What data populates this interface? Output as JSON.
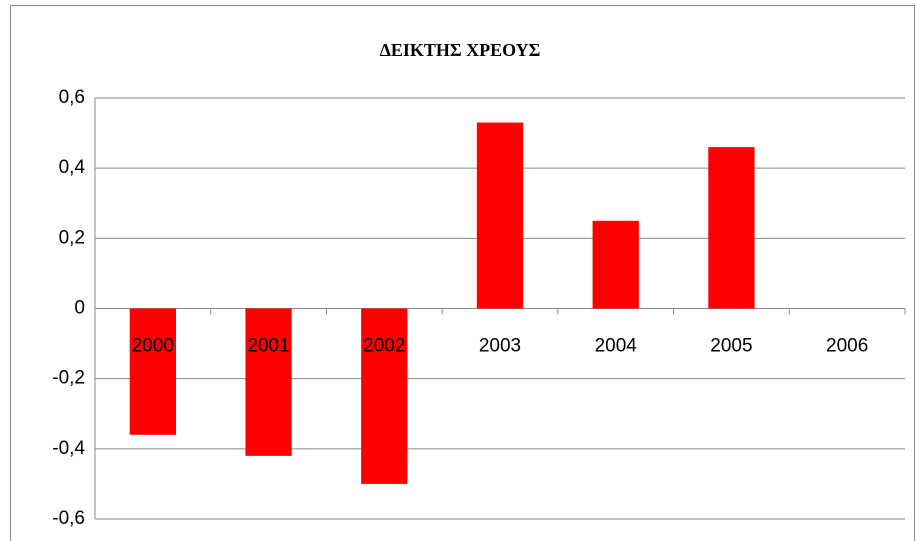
{
  "chart_data": {
    "type": "bar",
    "title": "ΔΕΙΚΤΗΣ ΧΡΕΟΥΣ",
    "categories": [
      "2000",
      "2001",
      "2002",
      "2003",
      "2004",
      "2005",
      "2006"
    ],
    "values": [
      -0.36,
      -0.42,
      -0.5,
      0.53,
      0.25,
      0.46,
      null
    ],
    "color": "#ff0000",
    "ylim": [
      -0.6,
      0.6
    ],
    "yticks": [
      {
        "value": -0.6,
        "label": "-0,6"
      },
      {
        "value": -0.4,
        "label": "-0,4"
      },
      {
        "value": -0.2,
        "label": "-0,2"
      },
      0,
      {
        "value": 0.2,
        "label": "0,2"
      },
      {
        "value": 0.4,
        "label": "0,4"
      },
      {
        "value": 0.6,
        "label": "0,6"
      }
    ],
    "grid": true
  }
}
